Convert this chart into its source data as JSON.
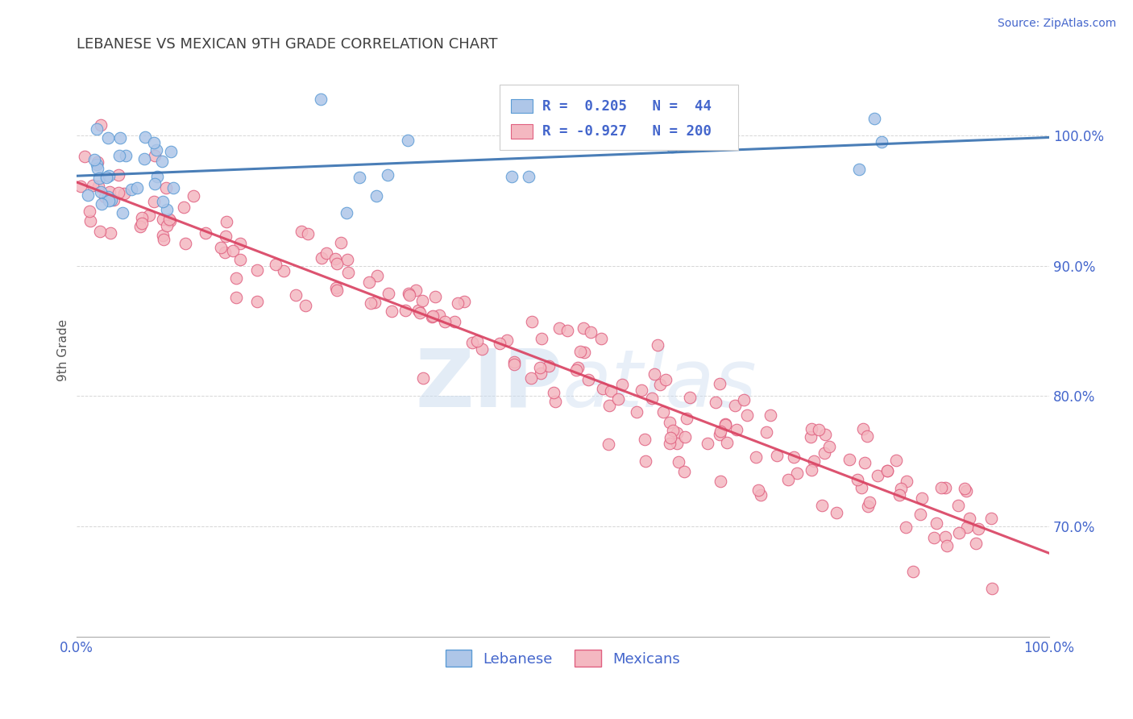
{
  "title": "LEBANESE VS MEXICAN 9TH GRADE CORRELATION CHART",
  "source_text": "Source: ZipAtlas.com",
  "ylabel": "9th Grade",
  "xlim": [
    0.0,
    1.0
  ],
  "ylim": [
    0.615,
    1.055
  ],
  "yticks": [
    0.7,
    0.8,
    0.9,
    1.0
  ],
  "ytick_labels": [
    "70.0%",
    "80.0%",
    "90.0%",
    "100.0%"
  ],
  "xtick_labels": [
    "0.0%",
    "100.0%"
  ],
  "background_color": "#ffffff",
  "grid_color": "#cccccc",
  "blue_dot_color": "#aec6e8",
  "blue_edge_color": "#5b9bd5",
  "pink_dot_color": "#f4b8c1",
  "pink_edge_color": "#e06080",
  "line_blue_color": "#3670b0",
  "line_pink_color": "#d94060",
  "title_color": "#404040",
  "axis_label_color": "#4466cc",
  "legend_R_blue": "0.205",
  "legend_N_blue": "44",
  "legend_R_pink": "-0.927",
  "legend_N_pink": "200",
  "seed": 42,
  "blue_n": 44,
  "pink_n": 200
}
